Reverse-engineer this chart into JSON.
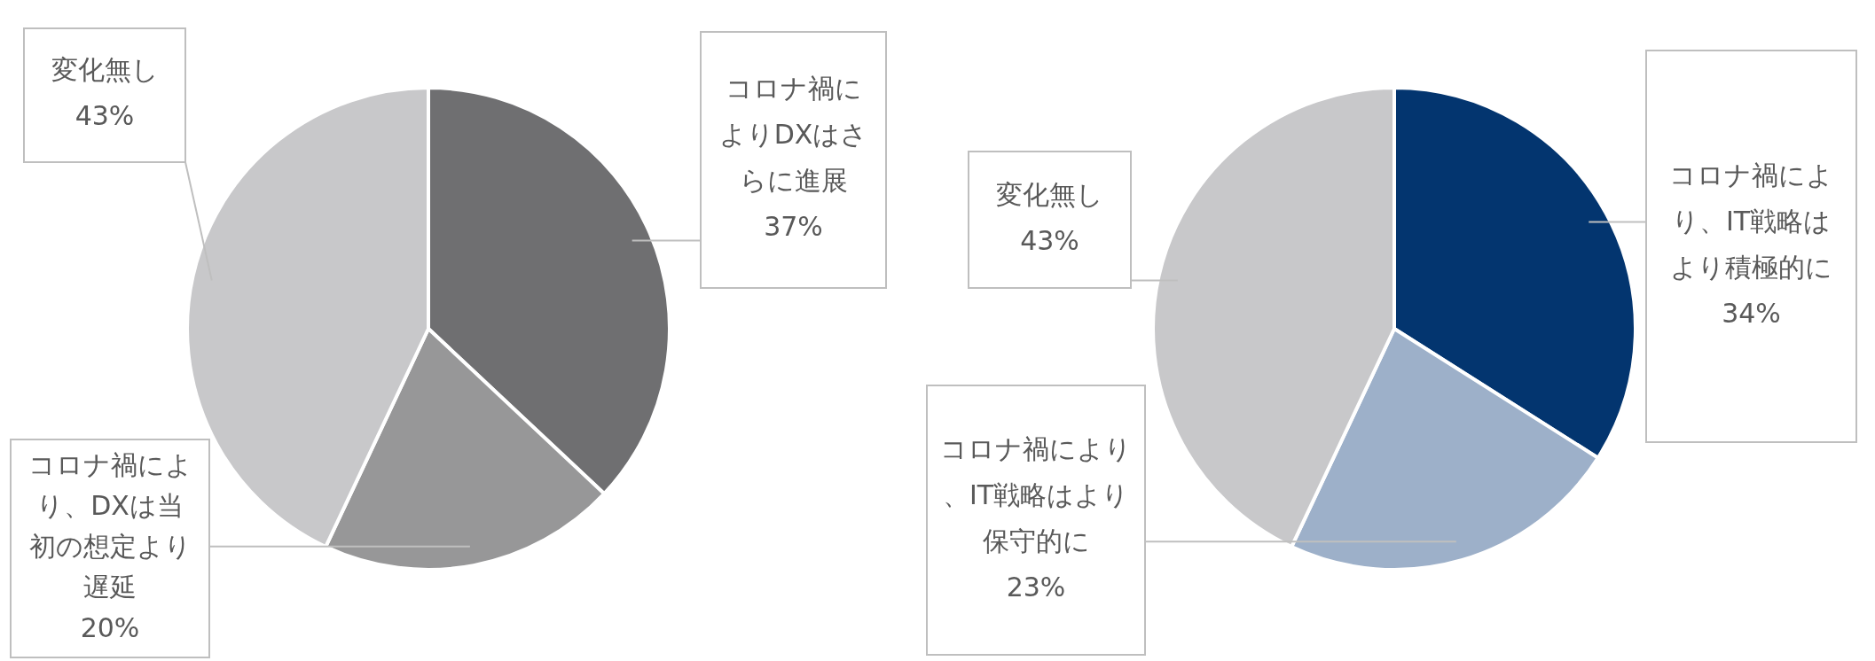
{
  "chart_data": [
    {
      "type": "pie",
      "categories": [
        "コロナ禍によりDXはさらに進展",
        "コロナ禍により、DXは当初の想定より遅延",
        "変化無し"
      ],
      "values": [
        37,
        20,
        43
      ],
      "colors": [
        "#6f6f71",
        "#979798",
        "#c8c8ca"
      ],
      "value_labels": [
        "37%",
        "20%",
        "43%"
      ]
    },
    {
      "type": "pie",
      "categories": [
        "コロナ禍により、IT戦略はより積極的に",
        "コロナ禍により、IT戦略はより保守的に",
        "変化無し"
      ],
      "values": [
        34,
        23,
        43
      ],
      "colors": [
        "#03356f",
        "#9db0c9",
        "#c8c8ca"
      ],
      "value_labels": [
        "34%",
        "23%",
        "43%"
      ]
    }
  ]
}
